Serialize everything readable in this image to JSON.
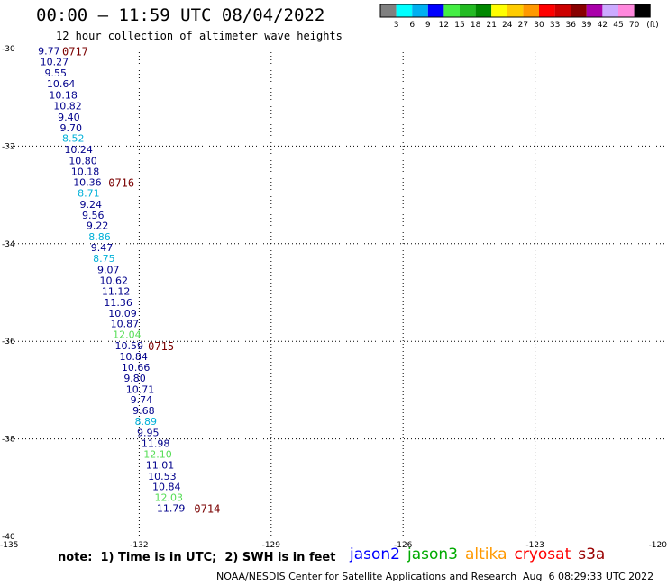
{
  "title": "00:00 – 11:59 UTC 08/04/2022",
  "subtitle": "12 hour collection of altimeter wave heights",
  "colorbar": {
    "colors": [
      "#808080",
      "#00ffff",
      "#00b0f0",
      "#0000ff",
      "#44ee44",
      "#22bb22",
      "#008800",
      "#ffff00",
      "#ffcc00",
      "#ff9900",
      "#ff0000",
      "#cc0000",
      "#880000",
      "#aa00aa",
      "#ccaaff",
      "#ff88dd",
      "#000000"
    ],
    "labels": [
      "3",
      "6",
      "9",
      "12",
      "15",
      "18",
      "21",
      "24",
      "27",
      "30",
      "33",
      "36",
      "39",
      "42",
      "45",
      "70"
    ],
    "unit": "(ft)"
  },
  "map": {
    "lat_labels": [
      "-30",
      "-32",
      "-34",
      "-36",
      "-38",
      "-40"
    ],
    "lon_labels": [
      "-135",
      "-132",
      "-129",
      "-126",
      "-123",
      "-120"
    ]
  },
  "observations": [
    {
      "lat": -30.05,
      "lon": -134.3,
      "value": "9.77",
      "color": "#00008b"
    },
    {
      "lat": -30.27,
      "lon": -134.25,
      "value": "10.27",
      "color": "#00008b"
    },
    {
      "lat": -30.5,
      "lon": -134.15,
      "value": "9.55",
      "color": "#00008b"
    },
    {
      "lat": -30.72,
      "lon": -134.1,
      "value": "10.64",
      "color": "#00008b"
    },
    {
      "lat": -30.95,
      "lon": -134.05,
      "value": "10.18",
      "color": "#00008b"
    },
    {
      "lat": -31.17,
      "lon": -133.95,
      "value": "10.82",
      "color": "#00008b"
    },
    {
      "lat": -31.4,
      "lon": -133.85,
      "value": "9.40",
      "color": "#00008b"
    },
    {
      "lat": -31.62,
      "lon": -133.8,
      "value": "9.70",
      "color": "#00008b"
    },
    {
      "lat": -31.84,
      "lon": -133.75,
      "value": "8.52",
      "color": "#00b0d8"
    },
    {
      "lat": -32.07,
      "lon": -133.7,
      "value": "10.24",
      "color": "#00008b"
    },
    {
      "lat": -32.3,
      "lon": -133.6,
      "value": "10.80",
      "color": "#00008b"
    },
    {
      "lat": -32.52,
      "lon": -133.55,
      "value": "10.18",
      "color": "#00008b"
    },
    {
      "lat": -32.74,
      "lon": -133.5,
      "value": "10.36",
      "color": "#00008b"
    },
    {
      "lat": -32.96,
      "lon": -133.4,
      "value": "8.71",
      "color": "#00b0d8"
    },
    {
      "lat": -33.19,
      "lon": -133.35,
      "value": "9.24",
      "color": "#00008b"
    },
    {
      "lat": -33.41,
      "lon": -133.3,
      "value": "9.56",
      "color": "#00008b"
    },
    {
      "lat": -33.63,
      "lon": -133.2,
      "value": "9.22",
      "color": "#00008b"
    },
    {
      "lat": -33.86,
      "lon": -133.15,
      "value": "8.86",
      "color": "#00b0d8"
    },
    {
      "lat": -34.08,
      "lon": -133.1,
      "value": "9.47",
      "color": "#00008b"
    },
    {
      "lat": -34.3,
      "lon": -133.05,
      "value": "8.75",
      "color": "#00b0d8"
    },
    {
      "lat": -34.53,
      "lon": -132.95,
      "value": "9.07",
      "color": "#00008b"
    },
    {
      "lat": -34.75,
      "lon": -132.9,
      "value": "10.62",
      "color": "#00008b"
    },
    {
      "lat": -34.97,
      "lon": -132.85,
      "value": "11.12",
      "color": "#00008b"
    },
    {
      "lat": -35.2,
      "lon": -132.8,
      "value": "11.36",
      "color": "#00008b"
    },
    {
      "lat": -35.42,
      "lon": -132.7,
      "value": "10.09",
      "color": "#00008b"
    },
    {
      "lat": -35.64,
      "lon": -132.65,
      "value": "10.87",
      "color": "#00008b"
    },
    {
      "lat": -35.86,
      "lon": -132.6,
      "value": "12.04",
      "color": "#55dd55"
    },
    {
      "lat": -36.09,
      "lon": -132.55,
      "value": "10.59",
      "color": "#00008b"
    },
    {
      "lat": -36.31,
      "lon": -132.45,
      "value": "10.84",
      "color": "#00008b"
    },
    {
      "lat": -36.53,
      "lon": -132.4,
      "value": "10.66",
      "color": "#00008b"
    },
    {
      "lat": -36.75,
      "lon": -132.35,
      "value": "9.80",
      "color": "#00008b"
    },
    {
      "lat": -36.98,
      "lon": -132.3,
      "value": "10.71",
      "color": "#00008b"
    },
    {
      "lat": -37.2,
      "lon": -132.2,
      "value": "9.74",
      "color": "#00008b"
    },
    {
      "lat": -37.42,
      "lon": -132.15,
      "value": "9.68",
      "color": "#00008b"
    },
    {
      "lat": -37.64,
      "lon": -132.1,
      "value": "8.89",
      "color": "#00b0d8"
    },
    {
      "lat": -37.87,
      "lon": -132.05,
      "value": "9.95",
      "color": "#00008b"
    },
    {
      "lat": -38.09,
      "lon": -131.95,
      "value": "11.98",
      "color": "#00008b"
    },
    {
      "lat": -38.31,
      "lon": -131.9,
      "value": "12.10",
      "color": "#55dd55"
    },
    {
      "lat": -38.53,
      "lon": -131.85,
      "value": "11.01",
      "color": "#00008b"
    },
    {
      "lat": -38.76,
      "lon": -131.8,
      "value": "10.53",
      "color": "#00008b"
    },
    {
      "lat": -38.98,
      "lon": -131.7,
      "value": "10.84",
      "color": "#00008b"
    },
    {
      "lat": -39.2,
      "lon": -131.65,
      "value": "12.03",
      "color": "#55dd55"
    },
    {
      "lat": -39.42,
      "lon": -131.6,
      "value": "11.79",
      "color": "#00008b"
    }
  ],
  "time_labels": [
    {
      "lat": -30.05,
      "lon": -133.75,
      "text": "0717"
    },
    {
      "lat": -32.74,
      "lon": -132.7,
      "text": "0716"
    },
    {
      "lat": -36.09,
      "lon": -131.8,
      "text": "0715"
    },
    {
      "lat": -39.42,
      "lon": -130.75,
      "text": "0714"
    }
  ],
  "note": "note:  1) Time is in UTC;  2) SWH is in feet",
  "legend": [
    {
      "name": "jason2",
      "color": "#0000ff"
    },
    {
      "name": "jason3",
      "color": "#00aa00"
    },
    {
      "name": "altika",
      "color": "#ff9900"
    },
    {
      "name": "cryosat",
      "color": "#ff0000"
    },
    {
      "name": "s3a",
      "color": "#990000"
    }
  ],
  "credit": "NOAA/NESDIS Center for Satellite Applications and Research",
  "timestamp": "Aug  6 08:29:33 UTC 2022"
}
